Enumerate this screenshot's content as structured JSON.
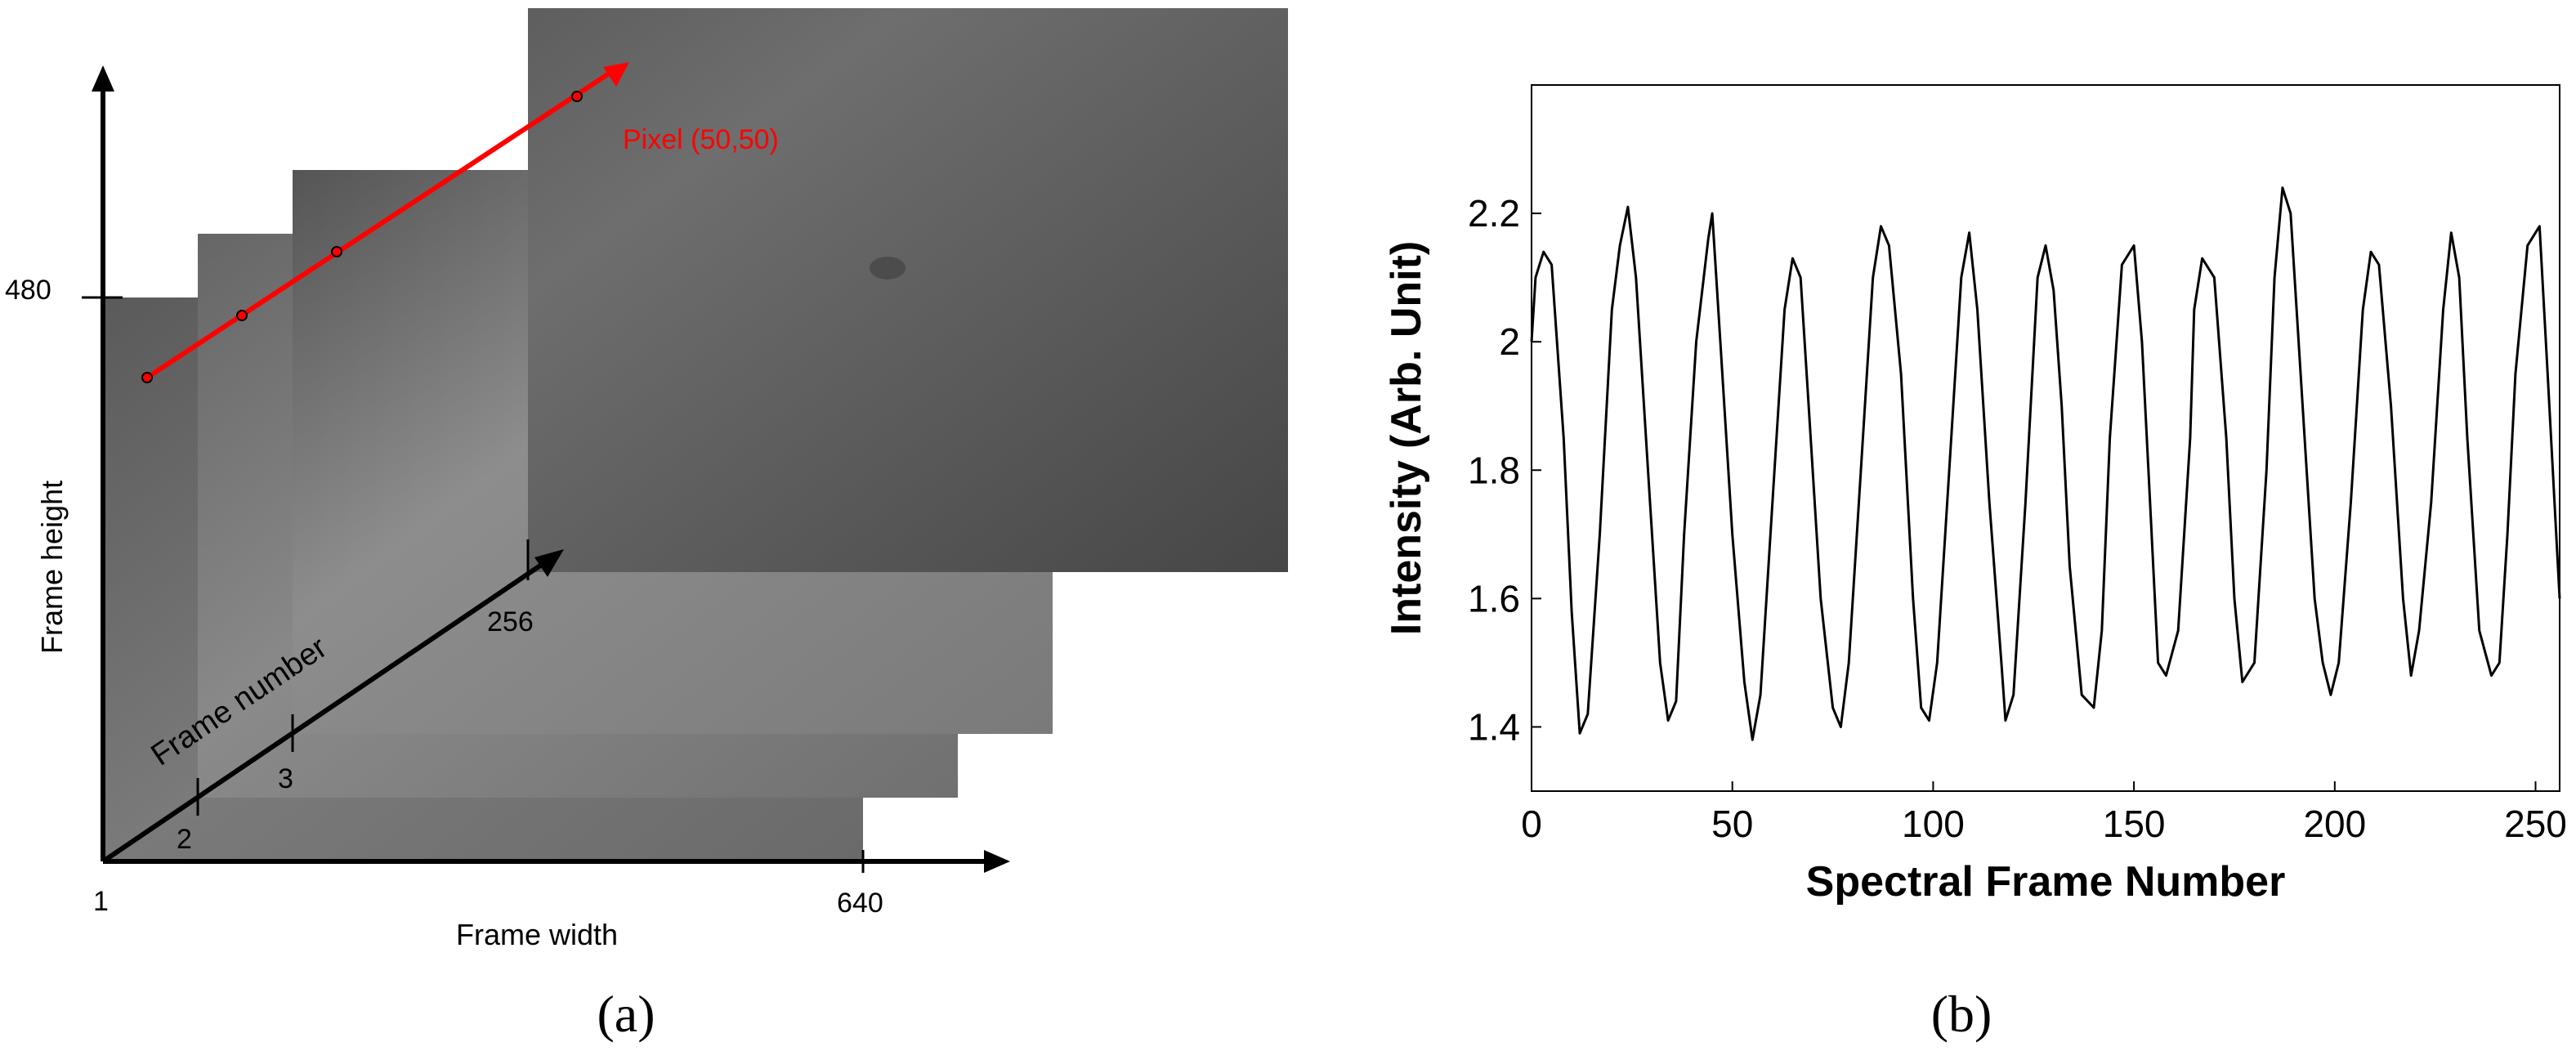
{
  "panel_a": {
    "caption": "(a)",
    "x_axis_label": "Frame width",
    "y_axis_label": "Frame height",
    "z_axis_label": "Frame number",
    "origin_label": "1",
    "width_tick_label": "640",
    "height_tick_label": "480",
    "frame_ticks": [
      "2",
      "3",
      "256"
    ],
    "pixel_label": "Pixel (50,50)",
    "colors": {
      "highlight": "#ff0000",
      "axis": "#000000",
      "frames": [
        "#5c5c5c",
        "#6c6c6c",
        "#787878",
        "#545454"
      ]
    }
  },
  "panel_b": {
    "caption": "(b)"
  },
  "chart_data": {
    "type": "line",
    "title": "",
    "xlabel": "Spectral Frame Number",
    "ylabel": "Intensity (Arb. Unit)",
    "xlim": [
      0,
      256
    ],
    "ylim": [
      1.3,
      2.4
    ],
    "xticks": [
      0,
      50,
      100,
      150,
      200,
      250
    ],
    "yticks": [
      1.4,
      1.6,
      1.8,
      2.0,
      2.2
    ],
    "ytick_labels": [
      "1.4",
      "1.6",
      "1.8",
      "2",
      "2.2"
    ],
    "grid": false,
    "series": [
      {
        "color": "#000000",
        "x": [
          0,
          1,
          3,
          5,
          8,
          10,
          12,
          14,
          17,
          20,
          22,
          24,
          26,
          29,
          32,
          34,
          36,
          38,
          41,
          44,
          45,
          47,
          50,
          53,
          55,
          57,
          60,
          63,
          65,
          67,
          69,
          72,
          75,
          77,
          79,
          82,
          85,
          87,
          89,
          92,
          95,
          97,
          99,
          101,
          104,
          107,
          109,
          111,
          114,
          117,
          118,
          120,
          123,
          126,
          128,
          130,
          132,
          134,
          137,
          140,
          142,
          144,
          147,
          150,
          152,
          154,
          156,
          158,
          161,
          164,
          165,
          167,
          170,
          173,
          175,
          177,
          180,
          183,
          185,
          187,
          189,
          192,
          195,
          197,
          199,
          201,
          204,
          207,
          209,
          211,
          214,
          217,
          219,
          221,
          224,
          227,
          229,
          231,
          233,
          236,
          239,
          241,
          243,
          245,
          248,
          251,
          253,
          256
        ],
        "y": [
          2.0,
          2.1,
          2.14,
          2.12,
          1.85,
          1.58,
          1.39,
          1.42,
          1.7,
          2.05,
          2.15,
          2.21,
          2.1,
          1.8,
          1.5,
          1.41,
          1.44,
          1.7,
          2.0,
          2.16,
          2.2,
          2.0,
          1.7,
          1.47,
          1.38,
          1.45,
          1.75,
          2.05,
          2.13,
          2.1,
          1.9,
          1.6,
          1.43,
          1.4,
          1.5,
          1.8,
          2.1,
          2.18,
          2.15,
          1.95,
          1.6,
          1.43,
          1.41,
          1.5,
          1.8,
          2.1,
          2.17,
          2.05,
          1.75,
          1.5,
          1.41,
          1.45,
          1.75,
          2.1,
          2.15,
          2.08,
          1.9,
          1.65,
          1.45,
          1.43,
          1.55,
          1.85,
          2.12,
          2.15,
          2.0,
          1.75,
          1.5,
          1.48,
          1.55,
          1.85,
          2.05,
          2.13,
          2.1,
          1.85,
          1.6,
          1.47,
          1.5,
          1.8,
          2.1,
          2.24,
          2.2,
          1.9,
          1.6,
          1.5,
          1.45,
          1.5,
          1.75,
          2.05,
          2.14,
          2.12,
          1.9,
          1.6,
          1.48,
          1.55,
          1.75,
          2.05,
          2.17,
          2.1,
          1.85,
          1.55,
          1.48,
          1.5,
          1.7,
          1.95,
          2.15,
          2.18,
          1.95,
          1.6
        ]
      }
    ]
  }
}
